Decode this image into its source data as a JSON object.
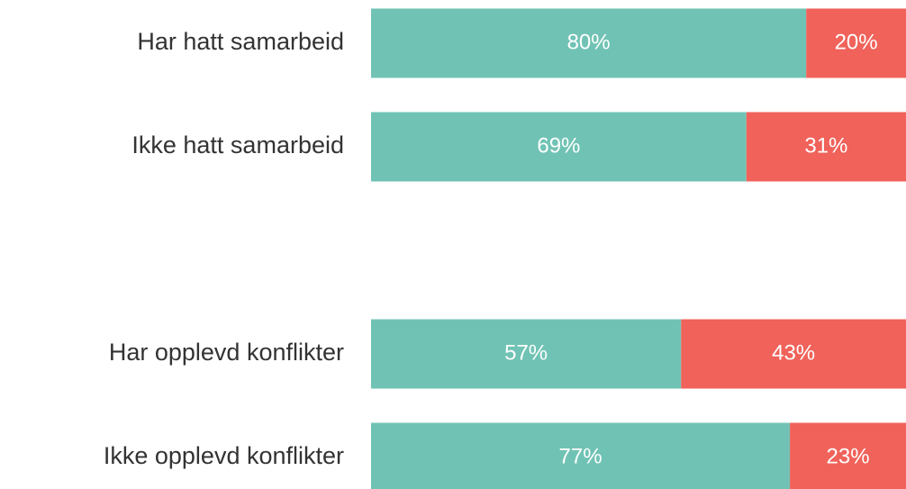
{
  "chart_data": {
    "type": "stacked_bar_horizontal",
    "categories": [
      "Har hatt samarbeid",
      "Ikke hatt samarbeid",
      null,
      "Har opplevd konflikter",
      "Ikke opplevd konflikter"
    ],
    "xlim": [
      0,
      100
    ],
    "series": [
      {
        "color": "#70c3b4",
        "values": [
          80,
          69,
          null,
          57,
          77
        ],
        "value_labels": [
          "80%",
          "69%",
          null,
          "57%",
          "77%"
        ]
      },
      {
        "color": "#f0625a",
        "values": [
          20,
          31,
          null,
          43,
          23
        ],
        "value_labels": [
          "20%",
          "31%",
          null,
          "43%",
          "23%"
        ]
      }
    ]
  }
}
